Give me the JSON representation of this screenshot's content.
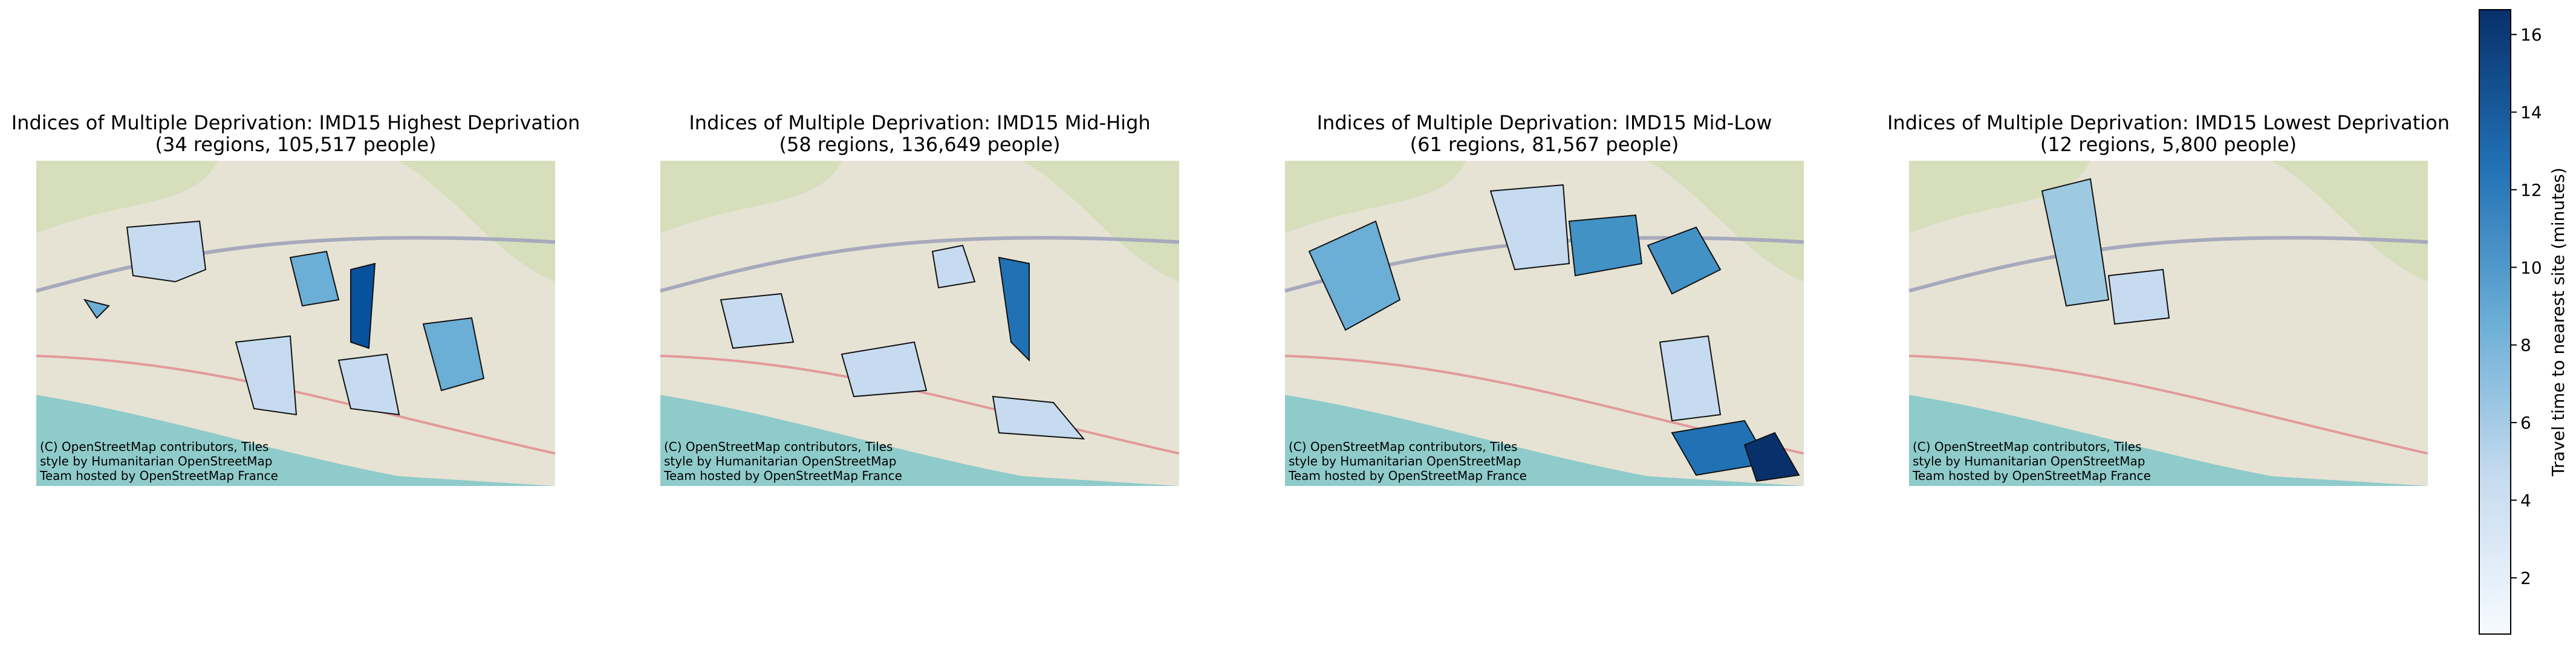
{
  "panels": [
    {
      "title": "Indices of Multiple Deprivation: IMD15 Highest Deprivation",
      "subtitle": "(34 regions, 105,517 people)",
      "attribution": [
        "(C) OpenStreetMap contributors, Tiles",
        "style by Humanitarian OpenStreetMap",
        "Team hosted by OpenStreetMap France"
      ]
    },
    {
      "title": "Indices of Multiple Deprivation: IMD15 Mid-High",
      "subtitle": "(58 regions, 136,649 people)",
      "attribution": [
        "(C) OpenStreetMap contributors, Tiles",
        "style by Humanitarian OpenStreetMap",
        "Team hosted by OpenStreetMap France"
      ]
    },
    {
      "title": "Indices of Multiple Deprivation: IMD15 Mid-Low",
      "subtitle": "(61 regions, 81,567 people)",
      "attribution": [
        "(C) OpenStreetMap contributors, Tiles",
        "style by Humanitarian OpenStreetMap",
        "Team hosted by OpenStreetMap France"
      ]
    },
    {
      "title": "Indices of Multiple Deprivation: IMD15 Lowest Deprivation",
      "subtitle": "(12 regions, 5,800 people)",
      "attribution": [
        "(C) OpenStreetMap contributors, Tiles",
        "style by Humanitarian OpenStreetMap",
        "Team hosted by OpenStreetMap France"
      ]
    }
  ],
  "colorbar": {
    "label": "Travel time to nearest site (minutes)",
    "lim": [
      0.55,
      16.64
    ],
    "ticks": [
      2,
      4,
      6,
      8,
      10,
      12,
      14,
      16
    ],
    "colors": [
      "#f7fbff",
      "#c6dbef",
      "#6baed6",
      "#2171b5",
      "#08306b"
    ]
  }
}
